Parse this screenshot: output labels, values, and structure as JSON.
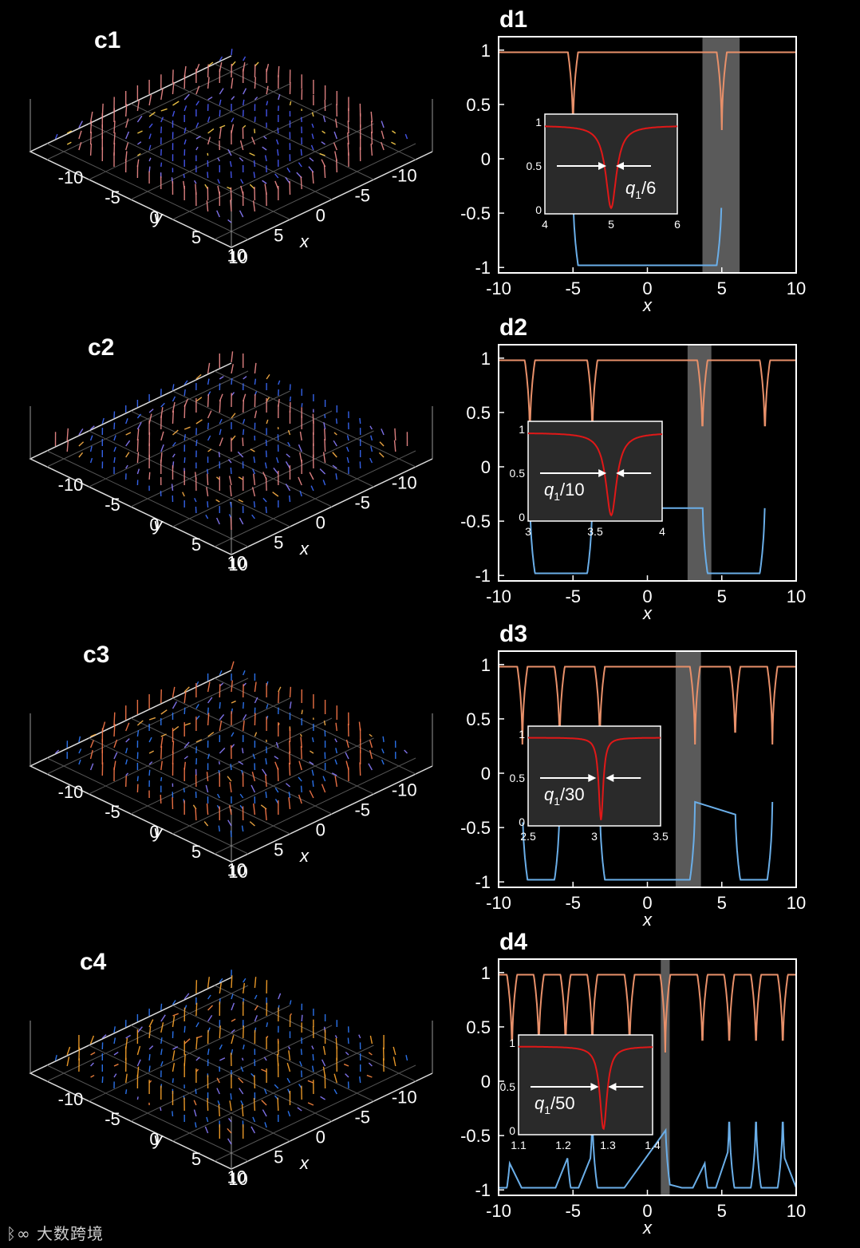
{
  "panels_3d": [
    {
      "label": "c1",
      "xticks": [
        "10",
        "5",
        "0",
        "-5",
        "-10"
      ],
      "yticks": [
        "10",
        "5",
        "0",
        "-5",
        "-10"
      ],
      "xlabel": "x",
      "ylabel": "y",
      "rings": 2,
      "colors": [
        "#f28c8c",
        "#8b7cff",
        "#4a5cff",
        "#ffd24a",
        "#ff6a6a"
      ]
    },
    {
      "label": "c2",
      "xticks": [
        "10",
        "5",
        "0",
        "-5",
        "-10"
      ],
      "yticks": [
        "10",
        "5",
        "0",
        "-5",
        "-10"
      ],
      "xlabel": "x",
      "ylabel": "y",
      "rings": 3,
      "colors": [
        "#f28c8c",
        "#8b7cff",
        "#3a6cff",
        "#ffb347",
        "#ff5050"
      ]
    },
    {
      "label": "c3",
      "xticks": [
        "10",
        "5",
        "0",
        "-5",
        "-10"
      ],
      "yticks": [
        "10",
        "5",
        "0",
        "-5",
        "-10"
      ],
      "xlabel": "x",
      "ylabel": "y",
      "rings": 4,
      "colors": [
        "#ff7a4a",
        "#8b7cff",
        "#2f7cff",
        "#ffb347",
        "#ff5050"
      ]
    },
    {
      "label": "c4",
      "xticks": [
        "10",
        "5",
        "0",
        "-5",
        "-10"
      ],
      "yticks": [
        "10",
        "5",
        "0",
        "-5",
        "-10"
      ],
      "xlabel": "x",
      "ylabel": "y",
      "rings": 5,
      "colors": [
        "#ffa62b",
        "#8b7cff",
        "#2f7cff",
        "#ff8a40",
        "#f28c8c"
      ]
    }
  ],
  "chart_data": [
    {
      "label": "d1",
      "type": "line",
      "xlabel": "x",
      "xlim": [
        -10,
        10
      ],
      "ylim": [
        -1.05,
        1.05
      ],
      "xticks": [
        "-10",
        "-5",
        "0",
        "5",
        "10"
      ],
      "yticks": [
        "1",
        "0.5",
        "0",
        "-0.5",
        "-1"
      ],
      "walls": [
        -5,
        5
      ],
      "inner_range": [
        -5,
        5
      ],
      "highlight": [
        3.7,
        6.2
      ],
      "inset": {
        "xticks": [
          "4",
          "5",
          "6"
        ],
        "xlim": [
          4,
          6
        ],
        "center": 5,
        "width": 0.12,
        "yticks": [
          "1",
          "0.5",
          "0"
        ],
        "label_q": "q",
        "label_sub": "1",
        "label_rest": "/6"
      }
    },
    {
      "label": "d2",
      "type": "line",
      "xlabel": "x",
      "xlim": [
        -10,
        10
      ],
      "ylim": [
        -1.05,
        1.05
      ],
      "xticks": [
        "-10",
        "-5",
        "0",
        "5",
        "10"
      ],
      "yticks": [
        "1",
        "0.5",
        "0",
        "-0.5",
        "-1"
      ],
      "walls": [
        -7.9,
        -3.7,
        3.7,
        7.9
      ],
      "inner_range": [
        -7.9,
        -3.7,
        3.7,
        7.9
      ],
      "highlight": [
        2.7,
        4.3
      ],
      "inset": {
        "xticks": [
          "3",
          "3.5",
          "4"
        ],
        "xlim": [
          3,
          4
        ],
        "center": 3.62,
        "width": 0.06,
        "yticks": [
          "1",
          "0.5",
          "0"
        ],
        "label_q": "q",
        "label_sub": "1",
        "label_rest": "/10"
      }
    },
    {
      "label": "d3",
      "type": "line",
      "xlabel": "x",
      "xlim": [
        -10,
        10
      ],
      "ylim": [
        -1.05,
        1.05
      ],
      "xticks": [
        "-10",
        "-5",
        "0",
        "5",
        "10"
      ],
      "yticks": [
        "1",
        "0.5",
        "0",
        "-0.5",
        "-1"
      ],
      "walls": [
        -8.4,
        -5.9,
        -3.2,
        3.2,
        5.9,
        8.4
      ],
      "inner_range": [
        -8.4,
        -5.9,
        -3.2,
        3.2,
        5.9,
        8.4
      ],
      "highlight": [
        1.9,
        3.6
      ],
      "inset": {
        "xticks": [
          "2.5",
          "3",
          "3.5"
        ],
        "xlim": [
          2.5,
          3.5
        ],
        "center": 3.05,
        "width": 0.025,
        "yticks": [
          "1",
          "0.5",
          "0"
        ],
        "label_q": "q",
        "label_sub": "1",
        "label_rest": "/30"
      }
    },
    {
      "label": "d4",
      "type": "line",
      "xlabel": "x",
      "xlim": [
        -10,
        10
      ],
      "ylim": [
        -1.05,
        1.05
      ],
      "xticks": [
        "-10",
        "-5",
        "0",
        "5",
        "10"
      ],
      "yticks": [
        "1",
        "0.5",
        "0",
        "-0.5",
        "-1"
      ],
      "walls": [
        -9.1,
        -7.3,
        -5.5,
        -3.7,
        -1.2,
        1.2,
        3.7,
        5.5,
        7.3,
        9.1
      ],
      "inner_range": [],
      "highlight": [
        0.9,
        1.5
      ],
      "inset": {
        "xticks": [
          "1.1",
          "1.2",
          "1.3",
          "1.4"
        ],
        "xlim": [
          1.1,
          1.4
        ],
        "center": 1.29,
        "width": 0.012,
        "yticks": [
          "1",
          "0.5",
          "0"
        ],
        "label_q": "q",
        "label_sub": "1",
        "label_rest": "/50"
      }
    }
  ],
  "colors": {
    "upper": "#e8906a",
    "lower": "#6aaee8",
    "inset_line": "#e01818",
    "highlight": "#5a5a5a",
    "inset_bg": "#2a2a2a"
  },
  "watermark": "大数跨境"
}
